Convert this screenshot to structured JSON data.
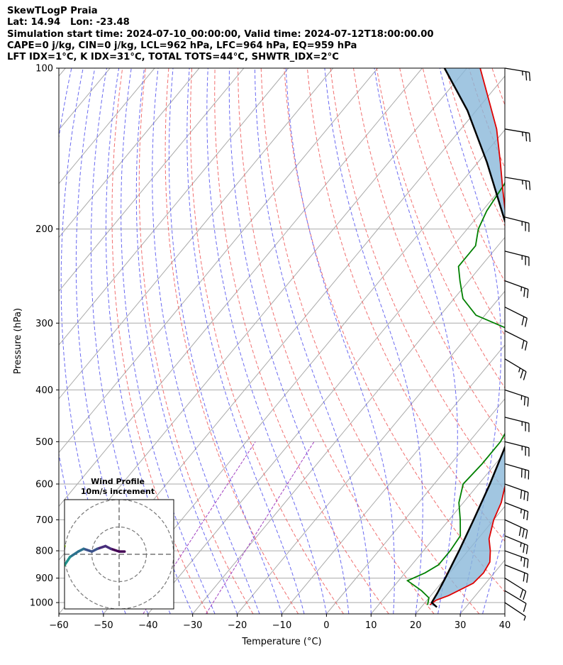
{
  "header": {
    "lines": [
      "SkewTLogP Praia",
      "Lat: 14.94   Lon: -23.48",
      "Simulation start time: 2024-07-10_00:00:00, Valid time: 2024-07-12T18:00:00.00",
      "CAPE=0 j/kg, CIN=0 j/kg, LCL=962 hPa, LFC=964 hPa, EQ=959 hPa",
      "LFT IDX=1°C, K IDX=31°C, TOTAL TOTS=44°C, SHWTR_IDX=2°C"
    ]
  },
  "chart_data": {
    "type": "line",
    "xlabel": "Temperature (°C)",
    "ylabel": "Pressure (hPa)",
    "xlim": [
      -60,
      40
    ],
    "ylim": [
      1050,
      100
    ],
    "y_scale": "log",
    "x_ticks": [
      -60,
      -50,
      -40,
      -30,
      -20,
      -10,
      0,
      10,
      20,
      30,
      40
    ],
    "y_ticks": [
      100,
      200,
      300,
      400,
      500,
      600,
      700,
      800,
      900,
      1000
    ],
    "grid": true,
    "colors": {
      "temperature": "#e00000",
      "dewpoint": "#008000",
      "parcel": "#000000",
      "cape_fill": "#8ab8da",
      "dry_adiabats": "#f06060",
      "moist_adiabats": "#5a5af0",
      "mixing_ratio": "#a040c0",
      "isotherms": "#aaaaaa"
    },
    "series": [
      {
        "key": "temperature",
        "points": [
          [
            1010,
            21.5
          ],
          [
            990,
            22
          ],
          [
            970,
            24
          ],
          [
            920,
            27.2
          ],
          [
            880,
            27.6
          ],
          [
            840,
            27
          ],
          [
            800,
            25
          ],
          [
            760,
            22.5
          ],
          [
            700,
            20
          ],
          [
            650,
            18.5
          ],
          [
            600,
            16
          ],
          [
            550,
            14.5
          ],
          [
            500,
            12.5
          ],
          [
            450,
            9.5
          ],
          [
            400,
            5
          ],
          [
            350,
            0
          ],
          [
            300,
            -9
          ],
          [
            250,
            -20
          ],
          [
            200,
            -31
          ],
          [
            170,
            -39
          ],
          [
            150,
            -45
          ],
          [
            130,
            -52
          ],
          [
            115,
            -59
          ],
          [
            100,
            -67
          ]
        ]
      },
      {
        "key": "dewpoint",
        "points": [
          [
            1010,
            21
          ],
          [
            980,
            20
          ],
          [
            950,
            17
          ],
          [
            910,
            12
          ],
          [
            880,
            14.5
          ],
          [
            850,
            16
          ],
          [
            800,
            16
          ],
          [
            750,
            15.5
          ],
          [
            700,
            12.5
          ],
          [
            650,
            9
          ],
          [
            600,
            6.5
          ],
          [
            550,
            7
          ],
          [
            500,
            7
          ],
          [
            450,
            5.5
          ],
          [
            400,
            3
          ],
          [
            370,
            -1
          ],
          [
            340,
            -5
          ],
          [
            310,
            -11
          ],
          [
            290,
            -22
          ],
          [
            270,
            -28
          ],
          [
            250,
            -32
          ],
          [
            235,
            -35
          ],
          [
            215,
            -35
          ],
          [
            200,
            -37.5
          ],
          [
            185,
            -39
          ],
          [
            165,
            -40
          ],
          [
            150,
            -42
          ],
          [
            135,
            -45
          ],
          [
            120,
            -47
          ],
          [
            110,
            -51
          ],
          [
            100,
            -56
          ]
        ]
      },
      {
        "key": "parcel",
        "points": [
          [
            1020,
            23.5
          ],
          [
            1000,
            21.5
          ],
          [
            960,
            21
          ],
          [
            900,
            20
          ],
          [
            800,
            18
          ],
          [
            700,
            15.5
          ],
          [
            600,
            12.5
          ],
          [
            500,
            8.5
          ],
          [
            400,
            2
          ],
          [
            300,
            -10
          ],
          [
            250,
            -19
          ],
          [
            200,
            -31
          ],
          [
            150,
            -48
          ],
          [
            120,
            -62
          ],
          [
            100,
            -75
          ]
        ]
      }
    ],
    "wind_barbs": {
      "pressures": [
        100,
        130,
        160,
        190,
        220,
        250,
        280,
        310,
        350,
        400,
        450,
        500,
        550,
        600,
        650,
        700,
        750,
        800,
        850,
        900,
        950,
        1000
      ],
      "u_ms": [
        -12,
        -12,
        -12,
        -12,
        -12,
        -11,
        -10,
        -10,
        -10,
        -12,
        -12,
        -12,
        -14,
        -14,
        -13,
        -13,
        -12,
        -11,
        -10,
        -8,
        -5,
        -3
      ],
      "v_ms": [
        2,
        2,
        2,
        3,
        3,
        4,
        5,
        5,
        6,
        4,
        3,
        3,
        4,
        5,
        5,
        6,
        5,
        4,
        4,
        5,
        3,
        2
      ]
    },
    "hodograph": {
      "title": "Wind Profile",
      "subtitle": "10m/s increment",
      "rings": [
        10,
        20,
        30,
        40,
        50
      ],
      "points": [
        [
          2,
          1
        ],
        [
          0,
          1
        ],
        [
          -3,
          2
        ],
        [
          -5,
          3
        ],
        [
          -8,
          2
        ],
        [
          -10,
          1
        ],
        [
          -13,
          2
        ],
        [
          -15,
          1
        ],
        [
          -18,
          -1
        ],
        [
          -20,
          -4
        ],
        [
          -22,
          -5
        ],
        [
          -23,
          -3
        ],
        [
          -22,
          1
        ],
        [
          -20,
          3
        ],
        [
          -22,
          4
        ],
        [
          -23,
          6
        ],
        [
          -24,
          7
        ]
      ]
    }
  }
}
